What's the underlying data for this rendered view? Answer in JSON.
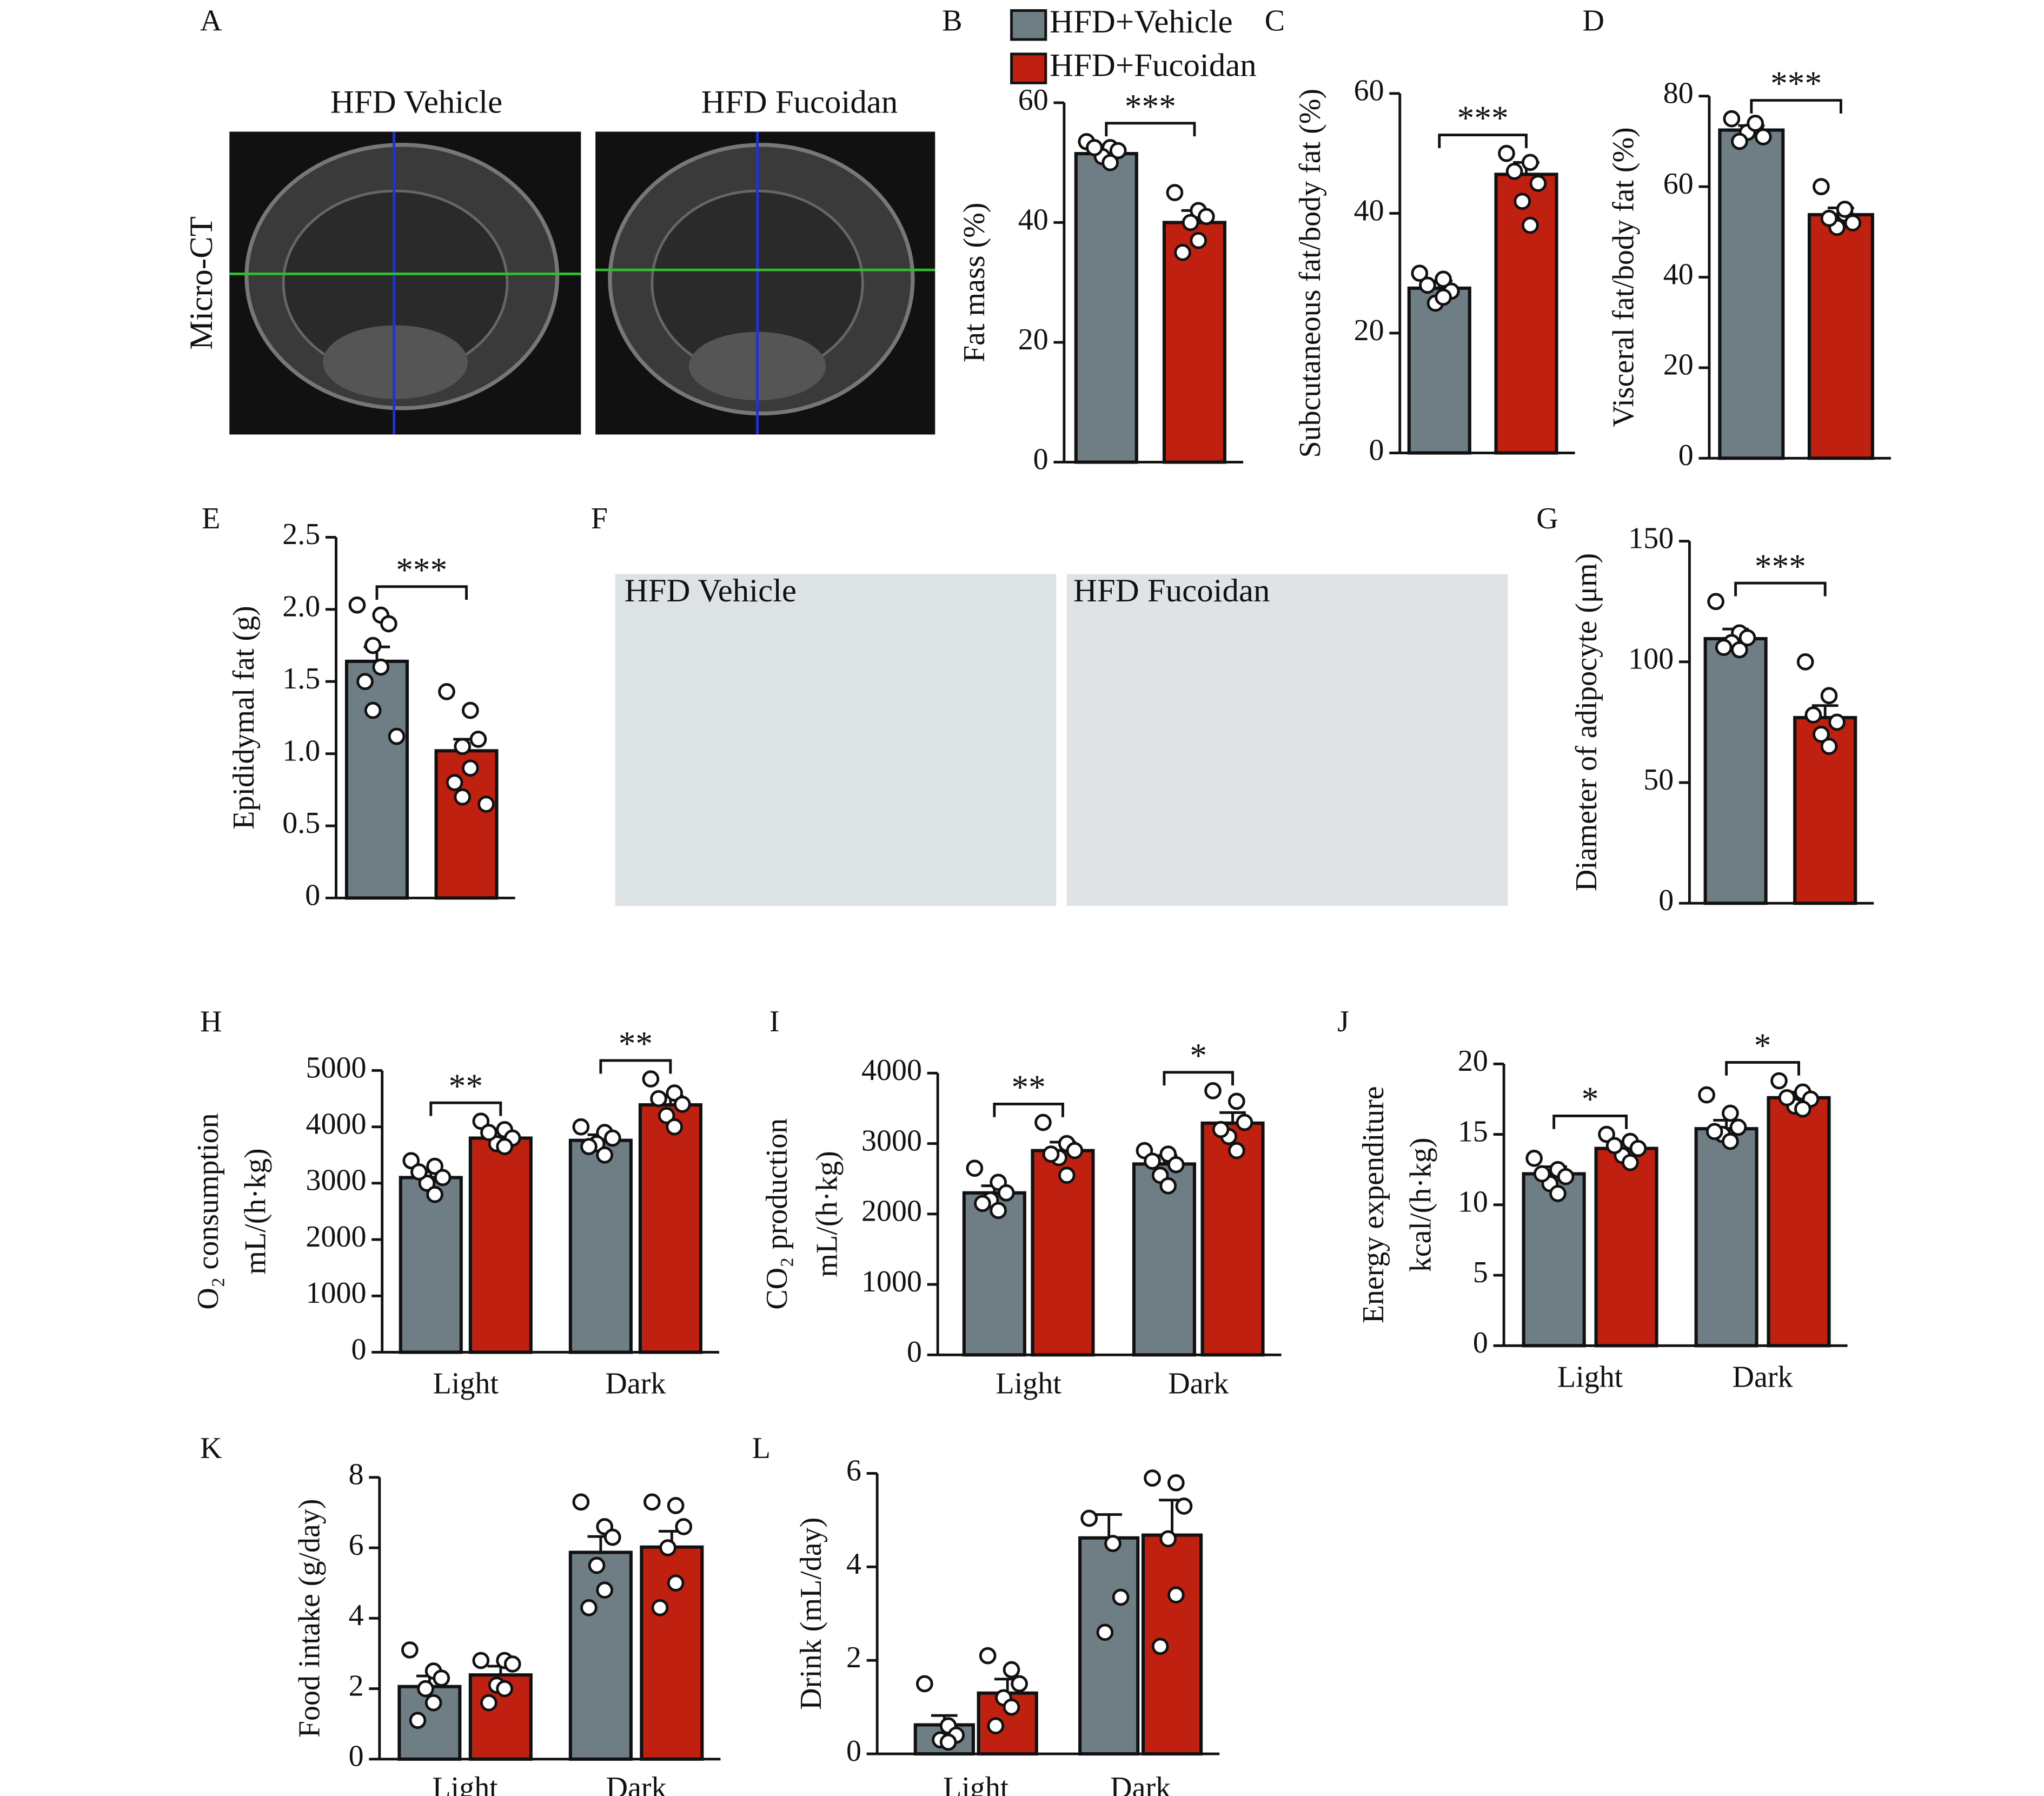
{
  "chart_data": [
    {
      "type": "bar",
      "panel": "B",
      "ylabel": "Fat mass (%)",
      "categories": [
        null
      ],
      "ylim": [
        0,
        60
      ],
      "yticks": [
        0,
        20,
        40,
        60
      ],
      "legend": true,
      "significance": [
        "***"
      ],
      "series": [
        {
          "name": "HFD+Vehicle",
          "color": "#6f7e85",
          "values": [
            51.5
          ],
          "errors": [
            1.0
          ],
          "points": [
            [
              53.5,
              52.5,
              52,
              51,
              50,
              52.5
            ]
          ]
        },
        {
          "name": "HFD+Fucoidan",
          "color": "#c0200f",
          "values": [
            40
          ],
          "errors": [
            2
          ],
          "points": [
            [
              45,
              42,
              41,
              40,
              37,
              35
            ]
          ]
        }
      ]
    },
    {
      "type": "bar",
      "panel": "C",
      "ylabel": "Subcutaneous fat/body fat (%)",
      "categories": [
        null
      ],
      "ylim": [
        0,
        60
      ],
      "yticks": [
        0,
        20,
        40,
        60
      ],
      "legend": false,
      "significance": [
        "***"
      ],
      "series": [
        {
          "color": "#6f7e85",
          "values": [
            27.5
          ],
          "errors": [
            1.2
          ],
          "points": [
            [
              30,
              29,
              27,
              25,
              26,
              28
            ]
          ]
        },
        {
          "color": "#c0200f",
          "values": [
            46.5
          ],
          "errors": [
            2
          ],
          "points": [
            [
              50,
              48.5,
              45,
              42,
              38,
              47
            ]
          ]
        }
      ]
    },
    {
      "type": "bar",
      "panel": "D",
      "ylabel": "Visceral fat/body fat (%)",
      "categories": [
        null
      ],
      "ylim": [
        0,
        80
      ],
      "yticks": [
        0,
        20,
        40,
        60,
        80
      ],
      "legend": false,
      "significance": [
        "***"
      ],
      "series": [
        {
          "color": "#6f7e85",
          "values": [
            72.5
          ],
          "errors": [
            1
          ],
          "points": [
            [
              75,
              73,
              71,
              72,
              74,
              70
            ]
          ]
        },
        {
          "color": "#c0200f",
          "values": [
            53.8
          ],
          "errors": [
            1.5
          ],
          "points": [
            [
              60,
              54,
              52,
              51,
              55,
              53
            ]
          ]
        }
      ]
    },
    {
      "type": "bar",
      "panel": "E",
      "ylabel": "Epididymal fat (g)",
      "categories": [
        null
      ],
      "ylim": [
        0,
        2.5
      ],
      "yticks": [
        0,
        0.5,
        {
          "value": 1,
          "label": "1.0"
        },
        1.5,
        {
          "value": 2,
          "label": "2.0"
        },
        2.5
      ],
      "legend": false,
      "significance": [
        "***"
      ],
      "series": [
        {
          "color": "#6f7e85",
          "values": [
            1.64
          ],
          "errors": [
            0.1
          ],
          "points": [
            [
              2.03,
              1.96,
              1.9,
              1.75,
              1.6,
              1.5,
              1.3,
              1.12
            ]
          ]
        },
        {
          "color": "#c0200f",
          "values": [
            1.02
          ],
          "errors": [
            0.08
          ],
          "points": [
            [
              1.43,
              1.3,
              1.1,
              1.05,
              0.9,
              0.8,
              0.7,
              0.65
            ]
          ]
        }
      ]
    },
    {
      "type": "bar",
      "panel": "G",
      "ylabel": "Diameter of adipocyte (μm)",
      "categories": [
        null
      ],
      "ylim": [
        0,
        150
      ],
      "yticks": [
        0,
        50,
        100,
        150
      ],
      "legend": false,
      "significance": [
        "***"
      ],
      "series": [
        {
          "color": "#6f7e85",
          "values": [
            109.6
          ],
          "errors": [
            4
          ],
          "points": [
            [
              125,
              112,
              110,
              108,
              105,
              106
            ]
          ]
        },
        {
          "color": "#c0200f",
          "values": [
            76.9
          ],
          "errors": [
            5
          ],
          "points": [
            [
              100,
              86,
              75,
              70,
              65,
              78
            ]
          ]
        }
      ]
    },
    {
      "type": "bar",
      "panel": "H",
      "ylabel": [
        "O₂ consumption",
        "mL/(h·kg)"
      ],
      "categories": [
        "Light",
        "Dark"
      ],
      "ylim": [
        0,
        5000
      ],
      "yticks": [
        0,
        1000,
        2000,
        3000,
        4000,
        5000
      ],
      "legend": false,
      "significance": [
        "**",
        "**"
      ],
      "series": [
        {
          "color": "#6f7e85",
          "values": [
            3100,
            3760
          ],
          "errors": [
            100,
            100
          ],
          "points": [
            [
              3400,
              3300,
              3100,
              3000,
              2800,
              3200
            ],
            [
              4000,
              3900,
              3800,
              3700,
              3500,
              3650
            ]
          ]
        },
        {
          "color": "#c0200f",
          "values": [
            3800,
            4390
          ],
          "errors": [
            100,
            150
          ],
          "points": [
            [
              4100,
              3950,
              3800,
              3700,
              3650,
              3900
            ],
            [
              4850,
              4600,
              4400,
              4200,
              4000,
              4500
            ]
          ]
        }
      ]
    },
    {
      "type": "bar",
      "panel": "I",
      "ylabel": [
        "CO₂ production",
        "mL/(h·kg)"
      ],
      "categories": [
        "Light",
        "Dark"
      ],
      "ylim": [
        0,
        4000
      ],
      "yticks": [
        0,
        1000,
        2000,
        3000,
        4000
      ],
      "legend": false,
      "significance": [
        "**",
        "*"
      ],
      "series": [
        {
          "color": "#6f7e85",
          "values": [
            2300,
            2710
          ],
          "errors": [
            100,
            120
          ],
          "points": [
            [
              2650,
              2450,
              2300,
              2200,
              2050,
              2150
            ],
            [
              2900,
              2850,
              2700,
              2550,
              2400,
              2750
            ]
          ]
        },
        {
          "color": "#c0200f",
          "values": [
            2900,
            3290
          ],
          "errors": [
            120,
            150
          ],
          "points": [
            [
              3300,
              3000,
              2900,
              2800,
              2550,
              2850
            ],
            [
              3750,
              3600,
              3300,
              3100,
              2900,
              3200
            ]
          ]
        }
      ]
    },
    {
      "type": "bar",
      "panel": "J",
      "ylabel": [
        "Energy expenditure",
        "kcal/(h·kg)"
      ],
      "categories": [
        "Light",
        "Dark"
      ],
      "ylim": [
        0,
        20
      ],
      "yticks": [
        0,
        5,
        10,
        15,
        20
      ],
      "legend": false,
      "significance": [
        "*",
        "*"
      ],
      "series": [
        {
          "color": "#6f7e85",
          "values": [
            12.2,
            15.4
          ],
          "errors": [
            0.5,
            0.6
          ],
          "points": [
            [
              13.3,
              12.5,
              12,
              11.5,
              10.8,
              12.2
            ],
            [
              17.8,
              16.5,
              15.5,
              15,
              14.5,
              15.2
            ]
          ]
        },
        {
          "color": "#c0200f",
          "values": [
            14,
            17.6
          ],
          "errors": [
            0.5,
            0.4
          ],
          "points": [
            [
              15,
              14.5,
              14,
              13.5,
              13,
              14.2
            ],
            [
              18.8,
              18,
              17.5,
              17,
              16.8,
              17.6
            ]
          ]
        }
      ]
    },
    {
      "type": "bar",
      "panel": "K",
      "ylabel": "Food intake (g/day)",
      "categories": [
        "Light",
        "Dark"
      ],
      "ylim": [
        0,
        8
      ],
      "yticks": [
        0,
        2,
        4,
        6,
        8
      ],
      "legend": false,
      "significance": [
        null,
        null
      ],
      "series": [
        {
          "color": "#6f7e85",
          "values": [
            2.06,
            5.87
          ],
          "errors": [
            0.3,
            0.45
          ],
          "points": [
            [
              3.1,
              2.5,
              2.3,
              2,
              1.6,
              1.1
            ],
            [
              7.3,
              6.6,
              6.3,
              5.5,
              4.8,
              4.3
            ]
          ]
        },
        {
          "color": "#c0200f",
          "values": [
            2.39,
            6.02
          ],
          "errors": [
            0.25,
            0.45
          ],
          "points": [
            [
              2.8,
              2.8,
              2.7,
              2.1,
              2,
              1.6
            ],
            [
              7.3,
              7.2,
              6.6,
              6,
              5,
              4.3
            ]
          ]
        }
      ]
    },
    {
      "type": "bar",
      "panel": "L",
      "ylabel": "Drink (mL/day)",
      "categories": [
        "Light",
        "Dark"
      ],
      "ylim": [
        0,
        6
      ],
      "yticks": [
        0,
        2,
        4,
        6
      ],
      "legend": false,
      "significance": [
        null,
        null
      ],
      "series": [
        {
          "color": "#6f7e85",
          "values": [
            0.62,
            4.62
          ],
          "errors": [
            0.2,
            0.5
          ],
          "points": [
            [
              1.5,
              0.6,
              0.4,
              0.3,
              0.25
            ],
            [
              5.04,
              4.5,
              3.35,
              2.6
            ]
          ]
        },
        {
          "color": "#c0200f",
          "values": [
            1.3,
            4.68
          ],
          "errors": [
            0.3,
            0.75
          ],
          "points": [
            [
              2.1,
              1.8,
              1.5,
              1.2,
              1,
              0.6
            ],
            [
              5.9,
              5.8,
              5.3,
              4.6,
              3.4,
              2.3
            ]
          ]
        }
      ]
    }
  ],
  "images": [
    {
      "panel": "A",
      "side_label": "Micro-CT",
      "captions": [
        "HFD Vehicle",
        "HFD Fucoidan"
      ]
    },
    {
      "panel": "F",
      "captions": [
        "HFD Vehicle",
        "HFD Fucoidan"
      ]
    }
  ]
}
